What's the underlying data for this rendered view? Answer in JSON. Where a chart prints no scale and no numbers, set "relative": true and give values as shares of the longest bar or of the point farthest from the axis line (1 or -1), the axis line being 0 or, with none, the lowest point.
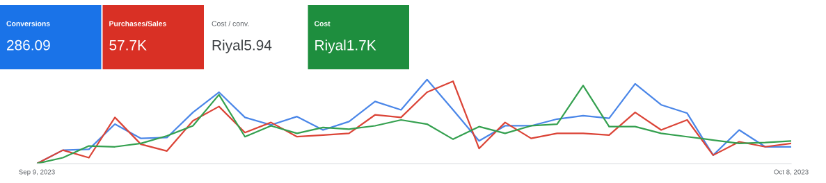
{
  "chart_data": [
    {
      "type": "other",
      "categories": [
        "Conversions",
        "Purchases/Sales",
        "Cost / conv.",
        "Cost"
      ],
      "value_labels": [
        "286.09",
        "57.7K",
        "Riyal5.94",
        "Riyal1.7K"
      ],
      "colors": [
        "#1a73e8",
        "#d93025",
        "#ffffff",
        "#1e8e3e"
      ]
    },
    {
      "type": "line",
      "relative": true,
      "marker": "none",
      "line_style": "solid",
      "categories": [
        "Sep 9, 2023",
        null,
        null,
        null,
        null,
        null,
        null,
        null,
        null,
        null,
        null,
        null,
        null,
        null,
        null,
        null,
        null,
        null,
        null,
        null,
        null,
        null,
        null,
        null,
        null,
        null,
        null,
        null,
        null,
        "Oct 8, 2023"
      ],
      "series": [
        {
          "color": "#4a86e8",
          "values": [
            0,
            0.16,
            0.17,
            0.47,
            0.3,
            0.31,
            0.61,
            0.85,
            0.55,
            0.46,
            0.56,
            0.4,
            0.5,
            0.74,
            0.64,
            1,
            0.64,
            0.27,
            0.45,
            0.45,
            0.53,
            0.57,
            0.54,
            0.95,
            0.7,
            0.6,
            0.1,
            0.4,
            0.2,
            0.2
          ]
        },
        {
          "color": "#db4437",
          "values": [
            0,
            0.16,
            0.07,
            0.55,
            0.23,
            0.15,
            0.51,
            0.68,
            0.37,
            0.49,
            0.32,
            0.34,
            0.36,
            0.58,
            0.55,
            0.85,
            0.98,
            0.18,
            0.49,
            0.3,
            0.36,
            0.36,
            0.34,
            0.61,
            0.4,
            0.52,
            0.1,
            0.26,
            0.2,
            0.24
          ]
        },
        {
          "color": "#34a04f",
          "values": [
            0,
            0.07,
            0.21,
            0.2,
            0.24,
            0.33,
            0.45,
            0.82,
            0.32,
            0.45,
            0.36,
            0.43,
            0.41,
            0.45,
            0.52,
            0.47,
            0.29,
            0.44,
            0.36,
            0.45,
            0.47,
            0.93,
            0.44,
            0.44,
            0.36,
            0.32,
            0.28,
            0.24,
            0.25,
            0.27
          ]
        }
      ]
    }
  ]
}
